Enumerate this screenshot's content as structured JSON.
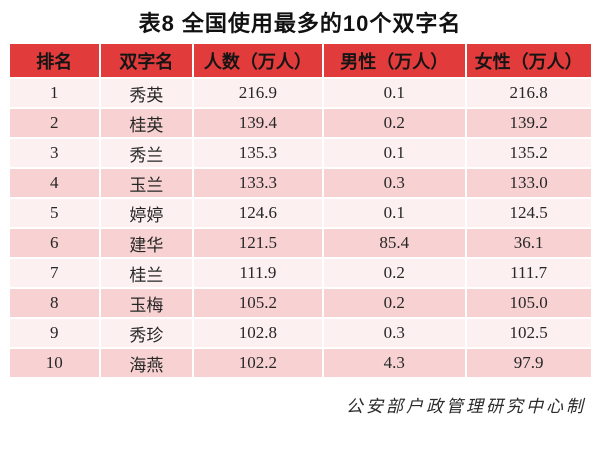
{
  "title": "表8  全国使用最多的10个双字名",
  "footer": "公安部户政管理研究中心制",
  "colors": {
    "header_bg": "#e23b3b",
    "row_light": "#fdf0f0",
    "row_dark": "#f8d2d2",
    "title_color": "#111111",
    "cell_text": "#262626",
    "page_bg": "#ffffff"
  },
  "chart_data": {
    "type": "table",
    "title": "表8  全国使用最多的10个双字名",
    "headers": [
      "排名",
      "双字名",
      "人数（万人）",
      "男性（万人）",
      "女性（万人）"
    ],
    "rows": [
      [
        "1",
        "秀英",
        "216.9",
        "0.1",
        "216.8"
      ],
      [
        "2",
        "桂英",
        "139.4",
        "0.2",
        "139.2"
      ],
      [
        "3",
        "秀兰",
        "135.3",
        "0.1",
        "135.2"
      ],
      [
        "4",
        "玉兰",
        "133.3",
        "0.3",
        "133.0"
      ],
      [
        "5",
        "婷婷",
        "124.6",
        "0.1",
        "124.5"
      ],
      [
        "6",
        "建华",
        "121.5",
        "85.4",
        "36.1"
      ],
      [
        "7",
        "桂兰",
        "111.9",
        "0.2",
        "111.7"
      ],
      [
        "8",
        "玉梅",
        "105.2",
        "0.2",
        "105.0"
      ],
      [
        "9",
        "秀珍",
        "102.8",
        "0.3",
        "102.5"
      ],
      [
        "10",
        "海燕",
        "102.2",
        "4.3",
        "97.9"
      ]
    ],
    "source_note": "公安部户政管理研究中心制",
    "layout": {
      "grid": "off",
      "header_style": "red-banner",
      "row_style": "alternating-pink"
    }
  }
}
